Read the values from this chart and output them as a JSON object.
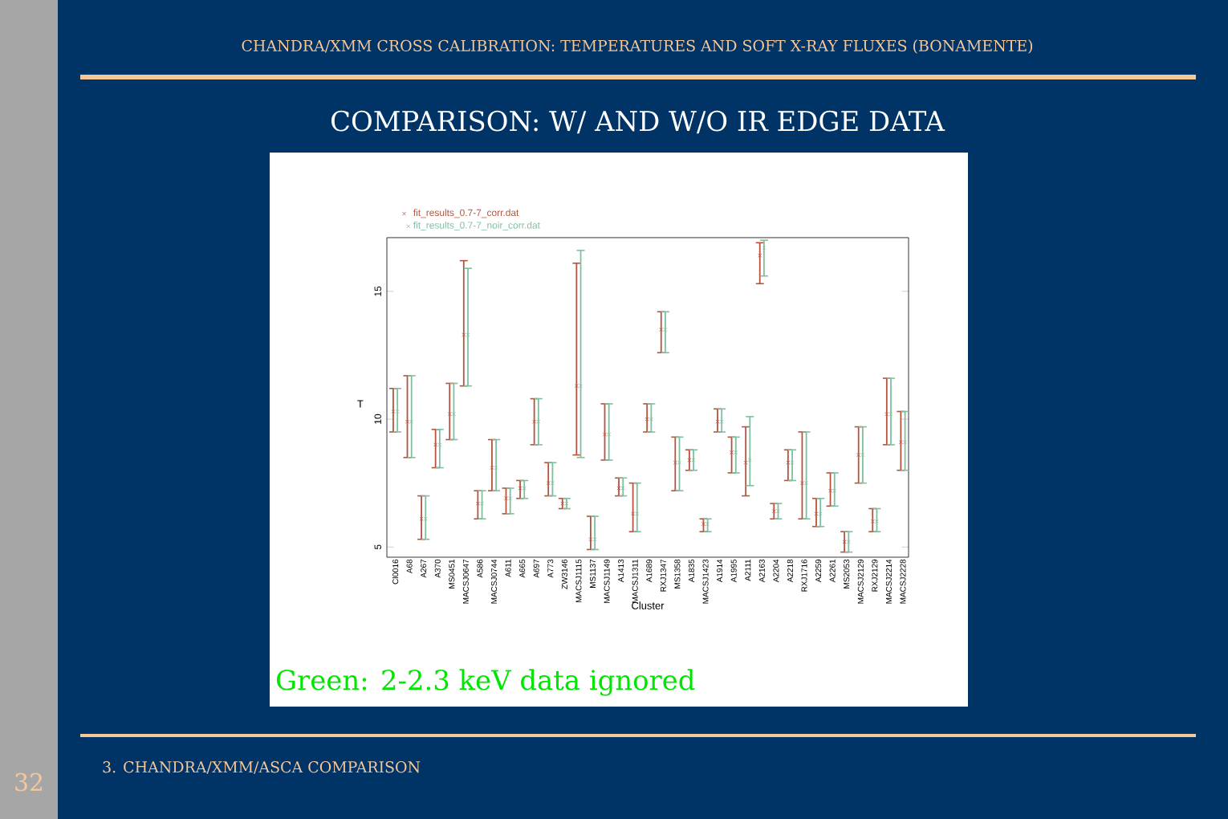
{
  "chart_data": {
    "type": "scatter",
    "title": "COMPARISON: W/ AND W/O IR EDGE DATA",
    "xlabel": "Cluster",
    "ylabel": "T",
    "annotations": [
      "CHANDRA/XMM CROSS CALIBRATION: TEMPERATURES AND SOFT X-RAY FLUXES (BONAMENTE)",
      "Green: 2-2.3 keV data ignored",
      "3. CHANDRA/XMM/ASCA COMPARISON",
      "32"
    ],
    "categories": [
      "Cl0016",
      "A68",
      "A267",
      "A370",
      "MS0451",
      "MACSJ0647",
      "A586",
      "MACSJ0744",
      "A611",
      "A665",
      "A697",
      "A773",
      "ZW3146",
      "MACSJ1115",
      "MS1137",
      "MACSJ1149",
      "A1413",
      "MACSJ1311",
      "A1689",
      "RXJ1347",
      "MS1358",
      "A1835",
      "MACSJ1423",
      "A1914",
      "A1995",
      "A2111",
      "A2163",
      "A2204",
      "A2218",
      "RXJ1716",
      "A2259",
      "A2261",
      "MS2053",
      "MACSJ2129",
      "RXJ2129",
      "MACSJ2214",
      "MACSJ2228"
    ],
    "ylim": [
      4.6,
      17.1
    ],
    "yticks": [
      5,
      10,
      15
    ],
    "marker": "cross",
    "legend": "top left",
    "series": [
      {
        "name": "fit_results_0.7-7_corr.dat",
        "color": "#b5533c",
        "values": [
          10.3,
          9.9,
          6.1,
          9.0,
          10.2,
          13.3,
          6.7,
          8.1,
          6.9,
          7.3,
          9.9,
          7.5,
          6.7,
          11.3,
          5.3,
          9.4,
          7.3,
          6.3,
          10.0,
          13.5,
          8.3,
          8.4,
          5.9,
          9.9,
          8.7,
          8.3,
          16.4,
          6.4,
          8.3,
          7.5,
          6.3,
          7.2,
          5.2,
          8.6,
          6.0,
          10.2,
          9.1
        ],
        "errors": [
          [
            9.5,
            11.2
          ],
          [
            8.5,
            11.7
          ],
          [
            5.3,
            7.0
          ],
          [
            8.1,
            9.6
          ],
          [
            9.2,
            11.4
          ],
          [
            11.3,
            16.2
          ],
          [
            6.1,
            7.2
          ],
          [
            7.2,
            9.2
          ],
          [
            6.3,
            7.3
          ],
          [
            6.9,
            7.6
          ],
          [
            9.0,
            10.8
          ],
          [
            7.0,
            8.3
          ],
          [
            6.5,
            6.9
          ],
          [
            8.6,
            16.1
          ],
          [
            4.9,
            6.2
          ],
          [
            8.4,
            10.6
          ],
          [
            7.0,
            7.7
          ],
          [
            5.6,
            7.5
          ],
          [
            9.5,
            10.6
          ],
          [
            12.6,
            14.2
          ],
          [
            7.2,
            9.3
          ],
          [
            8.0,
            8.8
          ],
          [
            5.6,
            6.1
          ],
          [
            9.5,
            10.4
          ],
          [
            7.9,
            9.3
          ],
          [
            7.0,
            9.7
          ],
          [
            15.3,
            16.9
          ],
          [
            6.1,
            6.7
          ],
          [
            7.6,
            8.8
          ],
          [
            6.1,
            9.5
          ],
          [
            5.8,
            6.9
          ],
          [
            6.6,
            7.9
          ],
          [
            4.8,
            5.6
          ],
          [
            7.5,
            9.7
          ],
          [
            5.6,
            6.5
          ],
          [
            9.0,
            11.6
          ],
          [
            8.0,
            10.3
          ]
        ]
      },
      {
        "name": "fit_results_0.7-7_noir_corr.dat",
        "color": "#7fbfa0",
        "values": [
          10.3,
          9.9,
          6.1,
          9.0,
          10.2,
          13.3,
          6.7,
          8.1,
          6.9,
          7.3,
          9.9,
          7.5,
          6.7,
          11.3,
          5.3,
          9.4,
          7.3,
          6.3,
          10.0,
          13.5,
          8.3,
          8.4,
          5.9,
          9.9,
          8.7,
          8.4,
          16.7,
          6.4,
          8.3,
          7.5,
          6.3,
          7.2,
          5.2,
          8.6,
          6.0,
          10.2,
          9.1
        ],
        "errors": [
          [
            9.5,
            11.2
          ],
          [
            8.5,
            11.7
          ],
          [
            5.3,
            7.0
          ],
          [
            8.1,
            9.6
          ],
          [
            9.2,
            11.4
          ],
          [
            11.3,
            15.9
          ],
          [
            6.1,
            7.2
          ],
          [
            7.2,
            9.2
          ],
          [
            6.3,
            7.3
          ],
          [
            6.9,
            7.6
          ],
          [
            9.0,
            10.8
          ],
          [
            7.0,
            8.3
          ],
          [
            6.5,
            6.9
          ],
          [
            8.5,
            16.6
          ],
          [
            4.9,
            6.2
          ],
          [
            8.4,
            10.6
          ],
          [
            7.0,
            7.7
          ],
          [
            5.6,
            7.5
          ],
          [
            9.5,
            10.6
          ],
          [
            12.6,
            14.2
          ],
          [
            7.2,
            9.3
          ],
          [
            8.0,
            8.8
          ],
          [
            5.6,
            6.1
          ],
          [
            9.5,
            10.4
          ],
          [
            7.9,
            9.3
          ],
          [
            7.4,
            10.1
          ],
          [
            15.6,
            17.0
          ],
          [
            6.1,
            6.7
          ],
          [
            7.6,
            8.8
          ],
          [
            6.1,
            9.5
          ],
          [
            5.8,
            6.9
          ],
          [
            6.6,
            7.9
          ],
          [
            4.8,
            5.6
          ],
          [
            7.5,
            9.7
          ],
          [
            5.6,
            6.5
          ],
          [
            9.0,
            11.6
          ],
          [
            8.0,
            10.3
          ]
        ]
      }
    ]
  }
}
